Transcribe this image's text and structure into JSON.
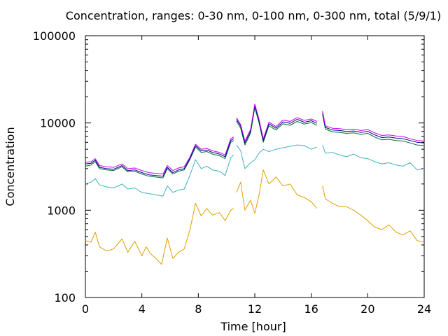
{
  "chart_data": {
    "type": "line",
    "title": "Concentration, ranges: 0-30 nm, 0-100 nm, 0-300 nm, total (5/9/1)",
    "xlabel": "Time [hour]",
    "ylabel": "Concentration",
    "xlim": [
      0,
      24
    ],
    "ylim": [
      100,
      100000
    ],
    "yscale": "log",
    "grid": false,
    "x_ticks": [
      0,
      4,
      8,
      12,
      16,
      20,
      24
    ],
    "x_tick_labels": [
      "0",
      "4",
      "8",
      "12",
      "16",
      "20",
      "24"
    ],
    "y_ticks": [
      100,
      1000,
      10000,
      100000
    ],
    "y_tick_labels": [
      "100",
      "1000",
      "10000",
      "100000"
    ],
    "series": [
      {
        "color": "#e0a000",
        "points": [
          [
            0,
            450
          ],
          [
            0.4,
            430
          ],
          [
            0.7,
            560
          ],
          [
            1.0,
            380
          ],
          [
            1.5,
            340
          ],
          [
            2.0,
            360
          ],
          [
            2.6,
            470
          ],
          [
            3.0,
            330
          ],
          [
            3.5,
            440
          ],
          [
            4.0,
            300
          ],
          [
            4.3,
            380
          ],
          [
            4.6,
            320
          ],
          [
            5.0,
            280
          ],
          [
            5.4,
            240
          ],
          [
            5.8,
            480
          ],
          [
            6.2,
            280
          ],
          [
            6.6,
            330
          ],
          [
            7.0,
            360
          ],
          [
            7.4,
            590
          ],
          [
            7.8,
            1200
          ],
          [
            8.2,
            860
          ],
          [
            8.6,
            1050
          ],
          [
            9.0,
            880
          ],
          [
            9.5,
            940
          ],
          [
            9.9,
            760
          ],
          [
            10.3,
            1000
          ],
          [
            10.5,
            1050
          ],
          null,
          [
            10.7,
            1600
          ],
          [
            11.0,
            2100
          ],
          [
            11.3,
            1000
          ],
          [
            11.7,
            1300
          ],
          [
            12.0,
            920
          ],
          [
            12.3,
            1500
          ],
          [
            12.6,
            2900
          ],
          [
            13.0,
            2000
          ],
          [
            13.5,
            2400
          ],
          [
            14.0,
            1900
          ],
          [
            14.5,
            2000
          ],
          [
            15.0,
            1500
          ],
          [
            15.5,
            1400
          ],
          [
            16.0,
            1250
          ],
          [
            16.4,
            1050
          ],
          null,
          [
            16.8,
            1900
          ],
          [
            17.0,
            1350
          ],
          [
            17.5,
            1200
          ],
          [
            18.0,
            1100
          ],
          [
            18.5,
            1100
          ],
          [
            19.0,
            1000
          ],
          [
            19.5,
            880
          ],
          [
            20.0,
            760
          ],
          [
            20.5,
            640
          ],
          [
            21.0,
            600
          ],
          [
            21.5,
            680
          ],
          [
            22.0,
            560
          ],
          [
            22.5,
            520
          ],
          [
            23.0,
            580
          ],
          [
            23.5,
            450
          ],
          [
            24.0,
            430
          ]
        ]
      },
      {
        "color": "#40b0c0",
        "points": [
          [
            0,
            2000
          ],
          [
            0.4,
            2100
          ],
          [
            0.7,
            2300
          ],
          [
            1.0,
            1950
          ],
          [
            1.5,
            1850
          ],
          [
            2.0,
            1800
          ],
          [
            2.6,
            2000
          ],
          [
            3.0,
            1750
          ],
          [
            3.5,
            1800
          ],
          [
            4.0,
            1600
          ],
          [
            4.5,
            1550
          ],
          [
            5.0,
            1500
          ],
          [
            5.5,
            1450
          ],
          [
            5.8,
            1900
          ],
          [
            6.2,
            1600
          ],
          [
            6.6,
            1700
          ],
          [
            7.0,
            1750
          ],
          [
            7.4,
            2500
          ],
          [
            7.8,
            3800
          ],
          [
            8.2,
            3000
          ],
          [
            8.6,
            3200
          ],
          [
            9.0,
            2900
          ],
          [
            9.5,
            2800
          ],
          [
            9.9,
            2500
          ],
          [
            10.3,
            4000
          ],
          [
            10.5,
            4300
          ],
          null,
          [
            10.7,
            5600
          ],
          [
            11.0,
            4800
          ],
          [
            11.3,
            3000
          ],
          [
            11.7,
            3500
          ],
          [
            12.0,
            3800
          ],
          [
            12.3,
            4500
          ],
          [
            12.6,
            5000
          ],
          [
            13.0,
            4700
          ],
          [
            13.5,
            5000
          ],
          [
            14.0,
            5200
          ],
          [
            14.5,
            5400
          ],
          [
            15.0,
            5600
          ],
          [
            15.5,
            5500
          ],
          [
            16.0,
            5000
          ],
          [
            16.4,
            5300
          ],
          null,
          [
            16.8,
            5600
          ],
          [
            17.0,
            4500
          ],
          [
            17.5,
            4600
          ],
          [
            18.0,
            4300
          ],
          [
            18.5,
            4100
          ],
          [
            19.0,
            4400
          ],
          [
            19.5,
            4000
          ],
          [
            20.0,
            3900
          ],
          [
            20.5,
            3600
          ],
          [
            21.0,
            3400
          ],
          [
            21.5,
            3500
          ],
          [
            22.0,
            3300
          ],
          [
            22.5,
            3200
          ],
          [
            23.0,
            3500
          ],
          [
            23.5,
            2900
          ],
          [
            24.0,
            3000
          ]
        ]
      },
      {
        "color": "#007030",
        "points": [
          [
            0,
            3200
          ],
          [
            0.4,
            3300
          ],
          [
            0.7,
            3600
          ],
          [
            1.0,
            3000
          ],
          [
            1.5,
            2900
          ],
          [
            2.0,
            2850
          ],
          [
            2.6,
            3150
          ],
          [
            3.0,
            2750
          ],
          [
            3.5,
            2800
          ],
          [
            4.0,
            2600
          ],
          [
            4.5,
            2450
          ],
          [
            5.0,
            2400
          ],
          [
            5.5,
            2350
          ],
          [
            5.8,
            3000
          ],
          [
            6.2,
            2600
          ],
          [
            6.6,
            2800
          ],
          [
            7.0,
            2900
          ],
          [
            7.4,
            3800
          ],
          [
            7.8,
            5300
          ],
          [
            8.2,
            4600
          ],
          [
            8.6,
            4700
          ],
          [
            9.0,
            4400
          ],
          [
            9.5,
            4200
          ],
          [
            9.9,
            3900
          ],
          [
            10.3,
            6000
          ],
          [
            10.5,
            6300
          ],
          null,
          [
            10.7,
            10500
          ],
          [
            11.0,
            8700
          ],
          [
            11.3,
            5600
          ],
          [
            11.7,
            7600
          ],
          [
            12.0,
            15000
          ],
          [
            12.3,
            10000
          ],
          [
            12.6,
            6000
          ],
          [
            13.0,
            9300
          ],
          [
            13.5,
            8300
          ],
          [
            14.0,
            9800
          ],
          [
            14.5,
            9400
          ],
          [
            15.0,
            10400
          ],
          [
            15.5,
            9700
          ],
          [
            16.0,
            10100
          ],
          [
            16.4,
            9400
          ],
          null,
          [
            16.8,
            12500
          ],
          [
            17.0,
            8500
          ],
          [
            17.5,
            7900
          ],
          [
            18.0,
            7800
          ],
          [
            18.5,
            7600
          ],
          [
            19.0,
            7700
          ],
          [
            19.5,
            7400
          ],
          [
            20.0,
            7600
          ],
          [
            20.5,
            6900
          ],
          [
            21.0,
            6400
          ],
          [
            21.5,
            6500
          ],
          [
            22.0,
            6300
          ],
          [
            22.5,
            6200
          ],
          [
            23.0,
            5900
          ],
          [
            23.5,
            5600
          ],
          [
            24.0,
            5500
          ]
        ]
      },
      {
        "color": "#000080",
        "points": [
          [
            0,
            3400
          ],
          [
            0.4,
            3450
          ],
          [
            0.7,
            3750
          ],
          [
            1.0,
            3100
          ],
          [
            1.5,
            3000
          ],
          [
            2.0,
            2950
          ],
          [
            2.6,
            3250
          ],
          [
            3.0,
            2850
          ],
          [
            3.5,
            2900
          ],
          [
            4.0,
            2700
          ],
          [
            4.5,
            2550
          ],
          [
            5.0,
            2500
          ],
          [
            5.5,
            2450
          ],
          [
            5.8,
            3100
          ],
          [
            6.2,
            2700
          ],
          [
            6.6,
            2900
          ],
          [
            7.0,
            3000
          ],
          [
            7.4,
            3900
          ],
          [
            7.8,
            5500
          ],
          [
            8.2,
            4800
          ],
          [
            8.6,
            4900
          ],
          [
            9.0,
            4600
          ],
          [
            9.5,
            4400
          ],
          [
            9.9,
            4100
          ],
          [
            10.3,
            6300
          ],
          [
            10.5,
            6600
          ],
          null,
          [
            10.7,
            11000
          ],
          [
            11.0,
            9200
          ],
          [
            11.3,
            5900
          ],
          [
            11.7,
            8000
          ],
          [
            12.0,
            15800
          ],
          [
            12.3,
            10500
          ],
          [
            12.6,
            6300
          ],
          [
            13.0,
            9800
          ],
          [
            13.5,
            8700
          ],
          [
            14.0,
            10300
          ],
          [
            14.5,
            9900
          ],
          [
            15.0,
            11000
          ],
          [
            15.5,
            10200
          ],
          [
            16.0,
            10600
          ],
          [
            16.4,
            9900
          ],
          null,
          [
            16.8,
            13100
          ],
          [
            17.0,
            8900
          ],
          [
            17.5,
            8300
          ],
          [
            18.0,
            8200
          ],
          [
            18.5,
            8000
          ],
          [
            19.0,
            8100
          ],
          [
            19.5,
            7800
          ],
          [
            20.0,
            8000
          ],
          [
            20.5,
            7300
          ],
          [
            21.0,
            6800
          ],
          [
            21.5,
            6900
          ],
          [
            22.0,
            6700
          ],
          [
            22.5,
            6600
          ],
          [
            23.0,
            6300
          ],
          [
            23.5,
            6000
          ],
          [
            24.0,
            5900
          ]
        ]
      },
      {
        "color": "#c000ff",
        "points": [
          [
            0,
            3550
          ],
          [
            0.4,
            3600
          ],
          [
            0.7,
            3900
          ],
          [
            1.0,
            3250
          ],
          [
            1.5,
            3150
          ],
          [
            2.0,
            3100
          ],
          [
            2.6,
            3400
          ],
          [
            3.0,
            3000
          ],
          [
            3.5,
            3050
          ],
          [
            4.0,
            2850
          ],
          [
            4.5,
            2700
          ],
          [
            5.0,
            2650
          ],
          [
            5.5,
            2600
          ],
          [
            5.8,
            3250
          ],
          [
            6.2,
            2850
          ],
          [
            6.6,
            3050
          ],
          [
            7.0,
            3150
          ],
          [
            7.4,
            4050
          ],
          [
            7.8,
            5700
          ],
          [
            8.2,
            5000
          ],
          [
            8.6,
            5100
          ],
          [
            9.0,
            4800
          ],
          [
            9.5,
            4600
          ],
          [
            9.9,
            4300
          ],
          [
            10.3,
            6600
          ],
          [
            10.5,
            6900
          ],
          null,
          [
            10.7,
            11500
          ],
          [
            11.0,
            9600
          ],
          [
            11.3,
            6200
          ],
          [
            11.7,
            8400
          ],
          [
            12.0,
            16500
          ],
          [
            12.3,
            11000
          ],
          [
            12.6,
            6600
          ],
          [
            13.0,
            10200
          ],
          [
            13.5,
            9100
          ],
          [
            14.0,
            10800
          ],
          [
            14.5,
            10400
          ],
          [
            15.0,
            11500
          ],
          [
            15.5,
            10700
          ],
          [
            16.0,
            11100
          ],
          [
            16.4,
            10400
          ],
          null,
          [
            16.8,
            13700
          ],
          [
            17.0,
            9300
          ],
          [
            17.5,
            8700
          ],
          [
            18.0,
            8600
          ],
          [
            18.5,
            8400
          ],
          [
            19.0,
            8500
          ],
          [
            19.5,
            8200
          ],
          [
            20.0,
            8400
          ],
          [
            20.5,
            7700
          ],
          [
            21.0,
            7200
          ],
          [
            21.5,
            7300
          ],
          [
            22.0,
            7100
          ],
          [
            22.5,
            7000
          ],
          [
            23.0,
            6600
          ],
          [
            23.5,
            6300
          ],
          [
            24.0,
            6200
          ]
        ]
      }
    ]
  }
}
